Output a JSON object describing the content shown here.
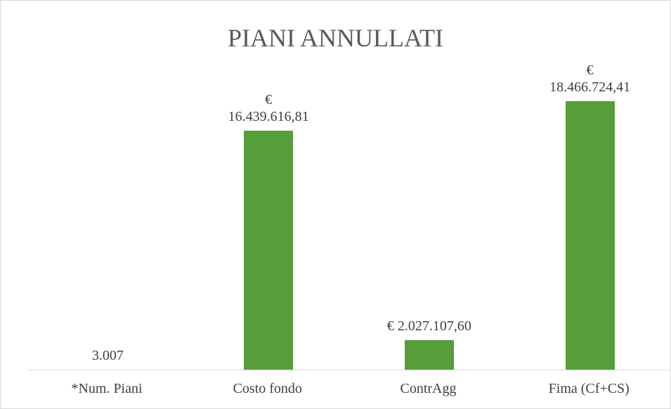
{
  "chart_data": {
    "type": "bar",
    "title": "PIANI ANNULLATI",
    "categories": [
      "*Num. Piani",
      "Costo fondo",
      "ContrAgg",
      "Fima (Cf+CS)"
    ],
    "values": [
      3007,
      16439616.81,
      2027107.6,
      18466724.41
    ],
    "value_labels": [
      "3.007",
      "€ 16.439.616,81",
      "€ 2.027.107,60",
      "€ 18.466.724,41"
    ],
    "color": "#559e3a",
    "ylim": [
      0,
      20000000
    ]
  }
}
